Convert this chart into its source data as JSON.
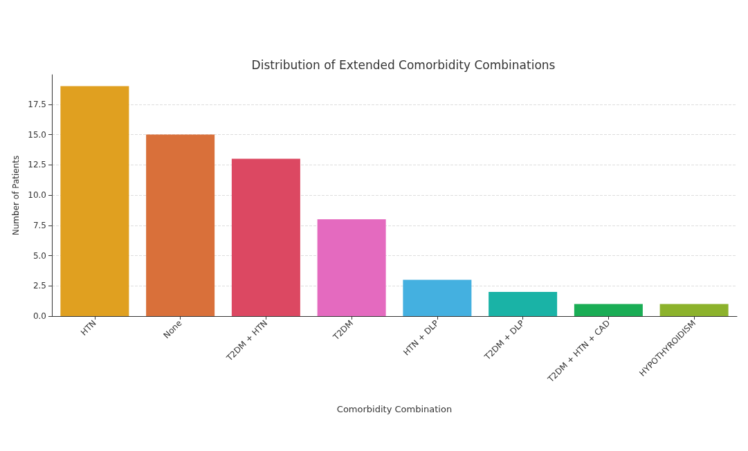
{
  "chart_data": {
    "type": "bar",
    "title": "Distribution of Extended Comorbidity Combinations",
    "xlabel": "Comorbidity Combination",
    "ylabel": "Number of Patients",
    "categories": [
      "HTN",
      "None",
      "T2DM + HTN",
      "T2DM",
      "HTN + DLP",
      "T2DM + DLP",
      "T2DM + HTN + CAD",
      "HYPOTHYROIDISM"
    ],
    "values": [
      19,
      15,
      13,
      8,
      3,
      2,
      1,
      1
    ],
    "colors": [
      "#e0a020",
      "#d9703a",
      "#dc4862",
      "#e46abf",
      "#44b0e0",
      "#1ab3a6",
      "#1aad55",
      "#8cb22c"
    ],
    "ylim": [
      0,
      19.95
    ],
    "yticks": [
      {
        "value": 0,
        "label": "0.0"
      },
      2.5,
      {
        "value": 5,
        "label": "5.0"
      },
      7.5,
      {
        "value": 10,
        "label": "10.0"
      },
      12.5,
      {
        "value": 15,
        "label": "15.0"
      },
      17.5
    ],
    "grid": "y"
  }
}
